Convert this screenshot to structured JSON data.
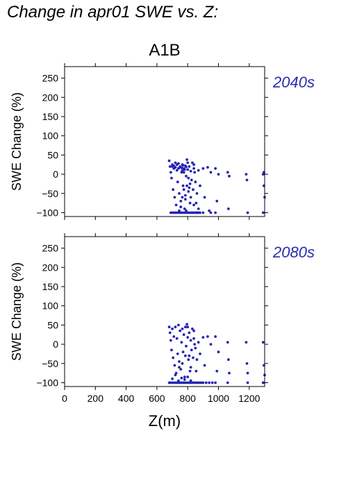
{
  "title": "Change in apr01 SWE vs. Z:",
  "colors": {
    "points": "#2424b4",
    "axis": "#000000",
    "period_label": "#2a2ab0"
  },
  "chart_data": [
    {
      "type": "scatter",
      "title": "A1B",
      "period": "2040s",
      "ylabel": "SWE Change (%)",
      "xlabel": "",
      "xlim": [
        0,
        1300
      ],
      "ylim": [
        -110,
        280
      ],
      "xticks": [
        0,
        200,
        400,
        600,
        800,
        1000,
        1200
      ],
      "yticks": [
        -100,
        -50,
        0,
        50,
        100,
        150,
        200,
        250
      ],
      "show_x_tick_labels": false,
      "grid": false,
      "series": [
        {
          "points": [
            [
              680,
              35
            ],
            [
              685,
              20
            ],
            [
              690,
              5
            ],
            [
              695,
              -10
            ],
            [
              700,
              25
            ],
            [
              705,
              -40
            ],
            [
              710,
              15
            ],
            [
              715,
              -60
            ],
            [
              720,
              30
            ],
            [
              725,
              -80
            ],
            [
              730,
              10
            ],
            [
              735,
              -20
            ],
            [
              740,
              28
            ],
            [
              745,
              -50
            ],
            [
              750,
              18
            ],
            [
              755,
              -70
            ],
            [
              760,
              5
            ],
            [
              765,
              25
            ],
            [
              770,
              -30
            ],
            [
              775,
              15
            ],
            [
              780,
              -90
            ],
            [
              785,
              22
            ],
            [
              790,
              -5
            ],
            [
              795,
              38
            ],
            [
              800,
              12
            ],
            [
              805,
              -45
            ],
            [
              810,
              20
            ],
            [
              815,
              -75
            ],
            [
              820,
              8
            ],
            [
              825,
              -15
            ],
            [
              690,
              -100
            ],
            [
              700,
              -100
            ],
            [
              710,
              -100
            ],
            [
              720,
              -100
            ],
            [
              730,
              -100
            ],
            [
              740,
              -100
            ],
            [
              750,
              -100
            ],
            [
              760,
              -100
            ],
            [
              770,
              -100
            ],
            [
              780,
              -100
            ],
            [
              790,
              -100
            ],
            [
              800,
              -100
            ],
            [
              810,
              -100
            ],
            [
              820,
              -100
            ],
            [
              830,
              -100
            ],
            [
              840,
              -100
            ],
            [
              850,
              -100
            ],
            [
              860,
              -100
            ],
            [
              870,
              -100
            ],
            [
              880,
              -100
            ],
            [
              700,
              20
            ],
            [
              710,
              22
            ],
            [
              720,
              18
            ],
            [
              730,
              25
            ],
            [
              740,
              15
            ],
            [
              750,
              20
            ],
            [
              760,
              17
            ],
            [
              770,
              23
            ],
            [
              780,
              12
            ],
            [
              790,
              19
            ],
            [
              745,
              -95
            ],
            [
              755,
              -85
            ],
            [
              765,
              -60
            ],
            [
              775,
              -40
            ],
            [
              785,
              -65
            ],
            [
              795,
              -30
            ],
            [
              805,
              -10
            ],
            [
              815,
              -25
            ],
            [
              765,
              10
            ],
            [
              775,
              5
            ],
            [
              840,
              15
            ],
            [
              850,
              -20
            ],
            [
              860,
              -50
            ],
            [
              870,
              10
            ],
            [
              880,
              -30
            ],
            [
              900,
              15
            ],
            [
              910,
              -60
            ],
            [
              930,
              18
            ],
            [
              940,
              -95
            ],
            [
              950,
              5
            ],
            [
              980,
              15
            ],
            [
              990,
              -70
            ],
            [
              1000,
              0
            ],
            [
              1060,
              5
            ],
            [
              1065,
              -90
            ],
            [
              1070,
              -5
            ],
            [
              1180,
              0
            ],
            [
              1190,
              -100
            ],
            [
              1185,
              -15
            ],
            [
              1290,
              0
            ],
            [
              1295,
              -30
            ],
            [
              1300,
              -60
            ],
            [
              1290,
              -100
            ],
            [
              1295,
              5
            ],
            [
              860,
              -100
            ],
            [
              900,
              -100
            ],
            [
              950,
              -100
            ],
            [
              980,
              -100
            ],
            [
              840,
              -80
            ],
            [
              870,
              -90
            ],
            [
              830,
              30
            ],
            [
              840,
              25
            ],
            [
              820,
              -60
            ],
            [
              835,
              -40
            ],
            [
              845,
              5
            ],
            [
              855,
              -75
            ],
            [
              790,
              -95
            ],
            [
              800,
              30
            ],
            [
              810,
              -35
            ],
            [
              785,
              -55
            ]
          ]
        }
      ]
    },
    {
      "type": "scatter",
      "title": "",
      "period": "2080s",
      "ylabel": "SWE Change (%)",
      "xlabel": "Z(m)",
      "xlim": [
        0,
        1300
      ],
      "ylim": [
        -110,
        280
      ],
      "xticks": [
        0,
        200,
        400,
        600,
        800,
        1000,
        1200
      ],
      "yticks": [
        -100,
        -50,
        0,
        50,
        100,
        150,
        200,
        250
      ],
      "show_x_tick_labels": true,
      "grid": false,
      "series": [
        {
          "points": [
            [
              680,
              45
            ],
            [
              685,
              30
            ],
            [
              690,
              10
            ],
            [
              695,
              -15
            ],
            [
              700,
              40
            ],
            [
              705,
              -35
            ],
            [
              710,
              20
            ],
            [
              715,
              -55
            ],
            [
              720,
              45
            ],
            [
              725,
              -75
            ],
            [
              730,
              15
            ],
            [
              735,
              -25
            ],
            [
              740,
              50
            ],
            [
              745,
              -45
            ],
            [
              750,
              35
            ],
            [
              755,
              -65
            ],
            [
              760,
              5
            ],
            [
              765,
              40
            ],
            [
              770,
              -20
            ],
            [
              775,
              25
            ],
            [
              780,
              -85
            ],
            [
              785,
              45
            ],
            [
              790,
              -5
            ],
            [
              795,
              52
            ],
            [
              800,
              18
            ],
            [
              805,
              -40
            ],
            [
              810,
              30
            ],
            [
              815,
              -70
            ],
            [
              820,
              10
            ],
            [
              825,
              -15
            ],
            [
              680,
              -100
            ],
            [
              690,
              -100
            ],
            [
              700,
              -100
            ],
            [
              710,
              -100
            ],
            [
              720,
              -100
            ],
            [
              730,
              -100
            ],
            [
              740,
              -100
            ],
            [
              750,
              -100
            ],
            [
              760,
              -100
            ],
            [
              770,
              -100
            ],
            [
              780,
              -100
            ],
            [
              790,
              -100
            ],
            [
              800,
              -100
            ],
            [
              810,
              -100
            ],
            [
              820,
              -100
            ],
            [
              830,
              -100
            ],
            [
              840,
              -100
            ],
            [
              850,
              -100
            ],
            [
              860,
              -100
            ],
            [
              870,
              -100
            ],
            [
              880,
              -100
            ],
            [
              890,
              -100
            ],
            [
              900,
              -100
            ],
            [
              920,
              -100
            ],
            [
              940,
              -100
            ],
            [
              960,
              -100
            ],
            [
              980,
              -100
            ],
            [
              1060,
              -100
            ],
            [
              1190,
              -100
            ],
            [
              1290,
              -100
            ],
            [
              700,
              -90
            ],
            [
              720,
              -80
            ],
            [
              740,
              -95
            ],
            [
              760,
              -88
            ],
            [
              780,
              -92
            ],
            [
              800,
              -85
            ],
            [
              820,
              -95
            ],
            [
              745,
              -60
            ],
            [
              765,
              -50
            ],
            [
              785,
              -30
            ],
            [
              840,
              15
            ],
            [
              850,
              -10
            ],
            [
              860,
              -40
            ],
            [
              870,
              5
            ],
            [
              880,
              -25
            ],
            [
              900,
              18
            ],
            [
              910,
              -55
            ],
            [
              930,
              20
            ],
            [
              950,
              0
            ],
            [
              980,
              20
            ],
            [
              990,
              -70
            ],
            [
              1000,
              -20
            ],
            [
              1060,
              5
            ],
            [
              1065,
              -40
            ],
            [
              1070,
              -75
            ],
            [
              1180,
              5
            ],
            [
              1185,
              -50
            ],
            [
              1190,
              -75
            ],
            [
              1290,
              5
            ],
            [
              1295,
              -55
            ],
            [
              1300,
              -80
            ],
            [
              1290,
              -100
            ],
            [
              830,
              40
            ],
            [
              840,
              35
            ],
            [
              820,
              -60
            ],
            [
              835,
              -35
            ],
            [
              845,
              0
            ],
            [
              855,
              -70
            ],
            [
              800,
              45
            ],
            [
              810,
              -30
            ]
          ]
        }
      ]
    }
  ]
}
